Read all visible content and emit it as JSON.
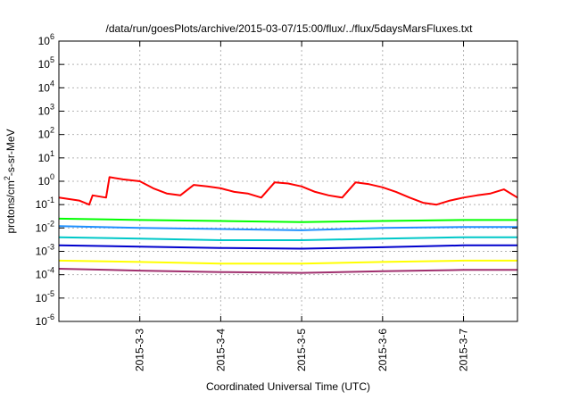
{
  "chart_data": {
    "type": "line",
    "title": "/data/run/goesPlots/archive/2015-03-07/15:00/flux/../flux/5daysMarsFluxes.txt",
    "xlabel": "Coordinated Universal Time (UTC)",
    "ylabel": {
      "pre": "protons/cm",
      "sup": "2",
      "post": "-s-sr-MeV"
    },
    "yscale": "log",
    "ylim": [
      1e-06,
      1000000.0
    ],
    "xlim": [
      "2015-03-02T00:00",
      "2015-03-07T16:00"
    ],
    "grid": true,
    "y_ticks": [
      {
        "value": 1000000.0,
        "exp": "6"
      },
      {
        "value": 100000.0,
        "exp": "5"
      },
      {
        "value": 10000.0,
        "exp": "4"
      },
      {
        "value": 1000.0,
        "exp": "3"
      },
      {
        "value": 100,
        "exp": "2"
      },
      {
        "value": 10,
        "exp": "1"
      },
      {
        "value": 1,
        "exp": "0"
      },
      {
        "value": 0.1,
        "exp": "-1"
      },
      {
        "value": 0.01,
        "exp": "-2"
      },
      {
        "value": 0.001,
        "exp": "-3"
      },
      {
        "value": 0.0001,
        "exp": "-4"
      },
      {
        "value": 1e-05,
        "exp": "-5"
      },
      {
        "value": 1e-06,
        "exp": "-6"
      }
    ],
    "x_ticks": [
      {
        "value": "2015-03-03T00:00",
        "label": "2015-3-3"
      },
      {
        "value": "2015-03-04T00:00",
        "label": "2015-3-4"
      },
      {
        "value": "2015-03-05T00:00",
        "label": "2015-3-5"
      },
      {
        "value": "2015-03-06T00:00",
        "label": "2015-3-6"
      },
      {
        "value": "2015-03-07T00:00",
        "label": "2015-3-7"
      }
    ],
    "series": [
      {
        "color": "#ff0000",
        "x": [
          "2015-03-02T00:00",
          "2015-03-02T06:00",
          "2015-03-02T09:00",
          "2015-03-02T10:00",
          "2015-03-02T14:00",
          "2015-03-02T15:00",
          "2015-03-02T19:00",
          "2015-03-03T00:00",
          "2015-03-03T04:00",
          "2015-03-03T08:00",
          "2015-03-03T12:00",
          "2015-03-03T16:00",
          "2015-03-03T20:00",
          "2015-03-04T00:00",
          "2015-03-04T04:00",
          "2015-03-04T08:00",
          "2015-03-04T12:00",
          "2015-03-04T16:00",
          "2015-03-04T20:00",
          "2015-03-05T00:00",
          "2015-03-05T04:00",
          "2015-03-05T08:00",
          "2015-03-05T12:00",
          "2015-03-05T16:00",
          "2015-03-05T20:00",
          "2015-03-06T00:00",
          "2015-03-06T04:00",
          "2015-03-06T08:00",
          "2015-03-06T12:00",
          "2015-03-06T16:00",
          "2015-03-06T20:00",
          "2015-03-07T00:00",
          "2015-03-07T04:00",
          "2015-03-07T08:00",
          "2015-03-07T12:00",
          "2015-03-07T16:00"
        ],
        "y": [
          0.2,
          0.15,
          0.1,
          0.25,
          0.2,
          1.5,
          1.2,
          1.0,
          0.5,
          0.3,
          0.25,
          0.7,
          0.6,
          0.5,
          0.35,
          0.3,
          0.2,
          0.9,
          0.8,
          0.6,
          0.35,
          0.25,
          0.2,
          0.9,
          0.75,
          0.55,
          0.35,
          0.2,
          0.12,
          0.1,
          0.15,
          0.2,
          0.25,
          0.3,
          0.45,
          0.2
        ]
      },
      {
        "color": "#00ff00",
        "x": [
          "2015-03-02T00:00",
          "2015-03-03T00:00",
          "2015-03-04T00:00",
          "2015-03-05T00:00",
          "2015-03-06T00:00",
          "2015-03-07T00:00",
          "2015-03-07T16:00"
        ],
        "y": [
          0.025,
          0.022,
          0.02,
          0.018,
          0.02,
          0.022,
          0.022
        ]
      },
      {
        "color": "#1e90ff",
        "x": [
          "2015-03-02T00:00",
          "2015-03-03T00:00",
          "2015-03-04T00:00",
          "2015-03-05T00:00",
          "2015-03-06T00:00",
          "2015-03-07T00:00",
          "2015-03-07T16:00"
        ],
        "y": [
          0.012,
          0.01,
          0.009,
          0.008,
          0.01,
          0.011,
          0.011
        ]
      },
      {
        "color": "#00c8c8",
        "x": [
          "2015-03-02T00:00",
          "2015-03-03T00:00",
          "2015-03-04T00:00",
          "2015-03-05T00:00",
          "2015-03-06T00:00",
          "2015-03-07T00:00",
          "2015-03-07T16:00"
        ],
        "y": [
          0.004,
          0.0035,
          0.003,
          0.003,
          0.0035,
          0.004,
          0.004
        ]
      },
      {
        "color": "#0000cd",
        "x": [
          "2015-03-02T00:00",
          "2015-03-03T00:00",
          "2015-03-04T00:00",
          "2015-03-05T00:00",
          "2015-03-06T00:00",
          "2015-03-07T00:00",
          "2015-03-07T16:00"
        ],
        "y": [
          0.0018,
          0.0016,
          0.0014,
          0.0013,
          0.0015,
          0.0018,
          0.0018
        ]
      },
      {
        "color": "#ffff00",
        "x": [
          "2015-03-02T00:00",
          "2015-03-03T00:00",
          "2015-03-04T00:00",
          "2015-03-05T00:00",
          "2015-03-06T00:00",
          "2015-03-07T00:00",
          "2015-03-07T16:00"
        ],
        "y": [
          0.0004,
          0.00035,
          0.0003,
          0.0003,
          0.00035,
          0.0004,
          0.0004
        ]
      },
      {
        "color": "#a0306e",
        "x": [
          "2015-03-02T00:00",
          "2015-03-03T00:00",
          "2015-03-04T00:00",
          "2015-03-05T00:00",
          "2015-03-06T00:00",
          "2015-03-07T00:00",
          "2015-03-07T16:00"
        ],
        "y": [
          0.00018,
          0.00015,
          0.00013,
          0.00012,
          0.00014,
          0.00016,
          0.00016
        ]
      }
    ]
  }
}
